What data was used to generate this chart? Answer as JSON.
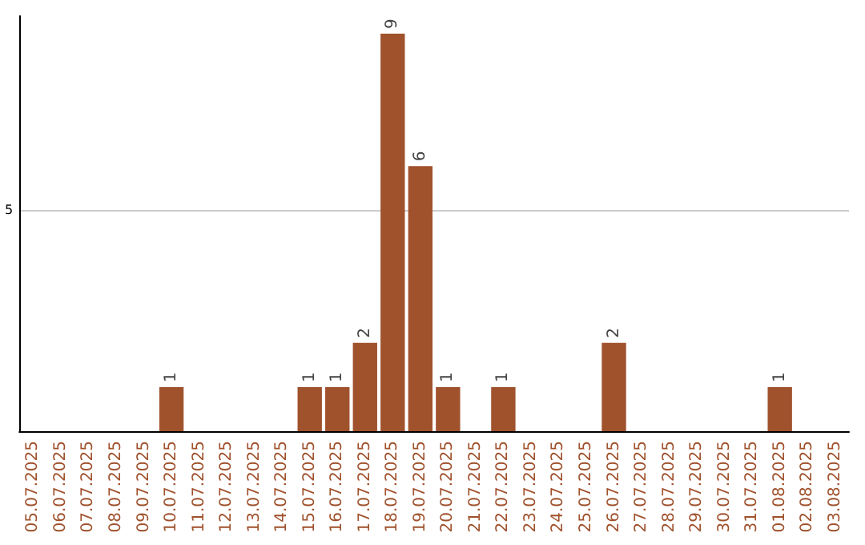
{
  "chart_data": {
    "type": "bar",
    "categories": [
      "05.07.2025",
      "06.07.2025",
      "07.07.2025",
      "08.07.2025",
      "09.07.2025",
      "10.07.2025",
      "11.07.2025",
      "12.07.2025",
      "13.07.2025",
      "14.07.2025",
      "15.07.2025",
      "16.07.2025",
      "17.07.2025",
      "18.07.2025",
      "19.07.2025",
      "20.07.2025",
      "21.07.2025",
      "22.07.2025",
      "23.07.2025",
      "24.07.2025",
      "25.07.2025",
      "26.07.2025",
      "27.07.2025",
      "28.07.2025",
      "29.07.2025",
      "30.07.2025",
      "31.07.2025",
      "01.08.2025",
      "02.08.2025",
      "03.08.2025"
    ],
    "values": [
      0,
      0,
      0,
      0,
      0,
      1,
      0,
      0,
      0,
      0,
      1,
      1,
      2,
      9,
      6,
      1,
      0,
      1,
      0,
      0,
      0,
      2,
      0,
      0,
      0,
      0,
      0,
      1,
      0,
      0
    ],
    "value_labels": [
      null,
      null,
      null,
      null,
      null,
      "1",
      null,
      null,
      null,
      null,
      "1",
      "1",
      "2",
      "9",
      "6",
      "1",
      null,
      "1",
      null,
      null,
      null,
      "2",
      null,
      null,
      null,
      null,
      null,
      "1",
      null,
      null
    ],
    "color": "#a0522d",
    "ylim": [
      0,
      9.4
    ],
    "yticks": [
      5
    ],
    "grid": "y"
  }
}
